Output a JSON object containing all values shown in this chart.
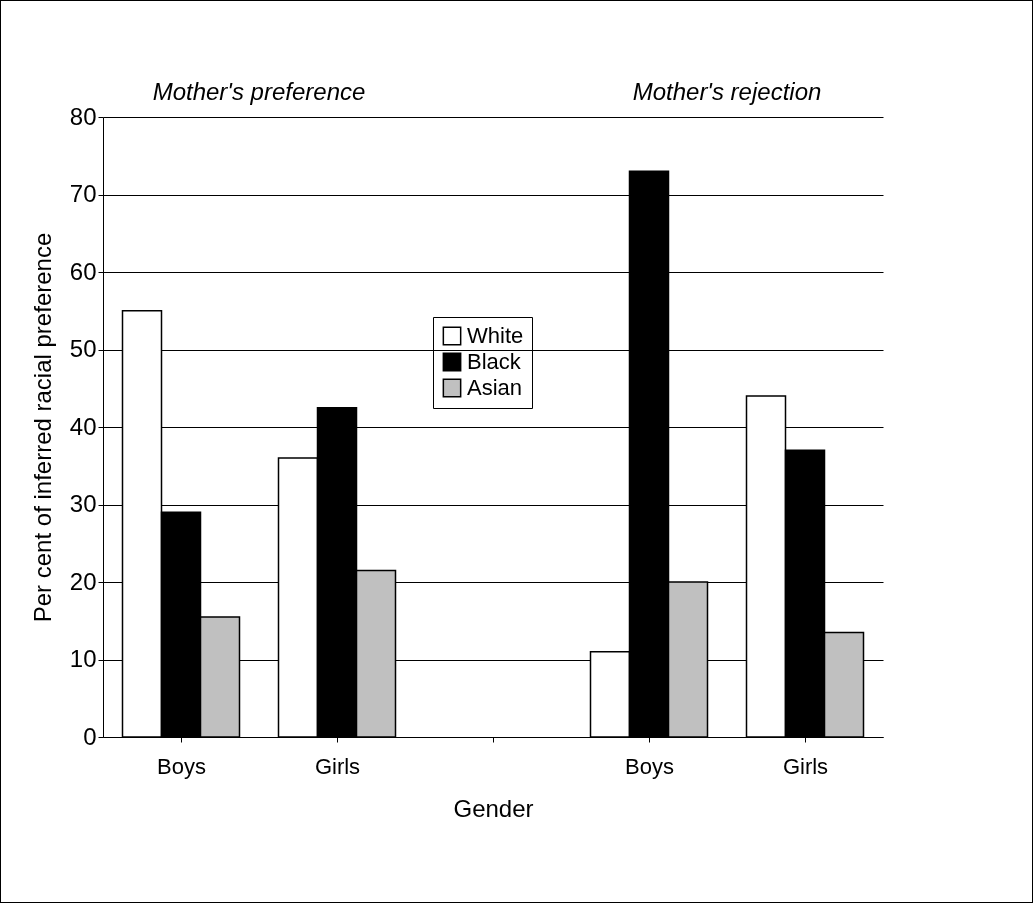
{
  "chart_data": {
    "type": "bar",
    "xlabel": "Gender",
    "ylabel": "Per cent of inferred racial preference",
    "categories": [
      "Boys",
      "Girls",
      null,
      "Boys",
      "Girls"
    ],
    "series": [
      {
        "name": "White",
        "color": "#ffffff",
        "values": [
          55,
          36,
          null,
          11,
          44
        ]
      },
      {
        "name": "Black",
        "color": "#000000",
        "values": [
          29,
          42.5,
          null,
          73,
          37
        ]
      },
      {
        "name": "Asian",
        "color": "#c0c0c0",
        "values": [
          15.5,
          21.5,
          null,
          20,
          13.5
        ]
      }
    ],
    "annotations": [
      "Mother's preference",
      "Mother's rejection"
    ],
    "ylim": [
      0,
      80
    ],
    "yticks": [
      0,
      10,
      20,
      30,
      40,
      50,
      60,
      70,
      80
    ],
    "grid": "y",
    "legend": "top"
  }
}
